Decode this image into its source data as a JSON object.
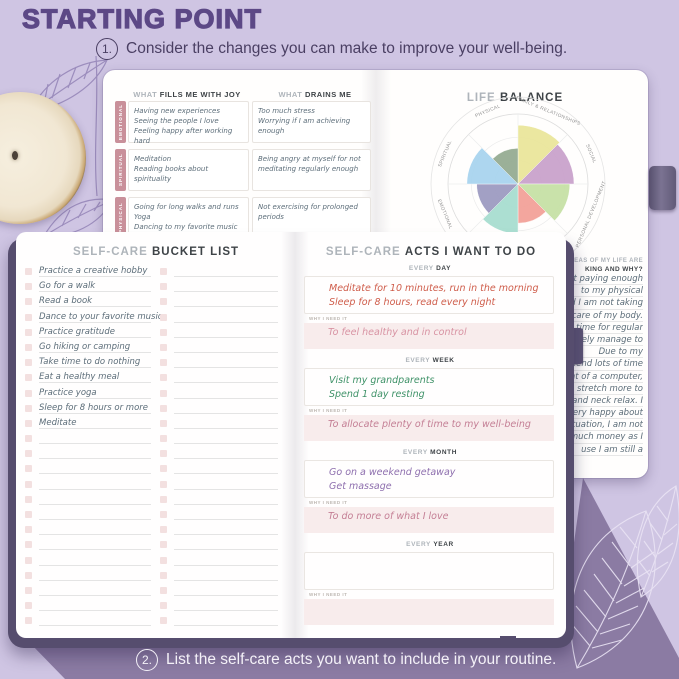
{
  "page": {
    "title": "STARTING POINT",
    "step1": {
      "number": "1.",
      "text": "Consider the changes you can make to improve your well-being."
    },
    "step2": {
      "number": "2.",
      "text": "List the self-care acts you want to include in your routine."
    }
  },
  "joy_page": {
    "joy_header_light": "WHAT",
    "joy_header_bold": "FILLS ME WITH JOY",
    "drains_header_light": "WHAT",
    "drains_header_bold": "DRAINS ME",
    "rows": [
      {
        "category": "EMOTIONAL",
        "joy": "Having new experiences\nSeeing the people I love\nFeeling happy after working hard",
        "drains": "Too much stress\nWorrying if I am achieving enough"
      },
      {
        "category": "SPIRITUAL",
        "joy": "Meditation\nReading books about spirituality",
        "drains": "Being angry at myself for not meditating regularly enough"
      },
      {
        "category": "PHYSICAL",
        "joy": "Going for long walks and runs\nYoga\nDancing to my favorite music",
        "drains": "Not exercising for prolonged periods"
      }
    ]
  },
  "life_balance": {
    "header_light": "LIFE",
    "header_bold": "BALANCE"
  },
  "chart_data": {
    "type": "pie",
    "title": "LIFE BALANCE",
    "categories": [
      "FAMILY & RELATIONSHIPS",
      "SOCIAL",
      "PERSONAL DEVELOPMENT",
      "",
      "",
      "EMOTIONAL",
      "SPIRITUAL",
      "PHYSICAL"
    ],
    "values": [
      8.4,
      8.0,
      7.4,
      5.6,
      7.1,
      5.9,
      7.3,
      5.1
    ],
    "scale_max": 10,
    "colors": [
      "#e9e598",
      "#c89fca",
      "#c4dfa3",
      "#f29e96",
      "#a5dcce",
      "#9a98bf",
      "#a6d2ee",
      "#93a98f"
    ],
    "grid": true,
    "legend_position": "none"
  },
  "reflection": {
    "header_line1": "AREAS OF MY LIFE ARE",
    "header_line2": "KING AND WHY?",
    "lines": [
      "not paying enough",
      "to my physical",
      "and I am not taking",
      "care of my body.",
      "time for regular",
      "rarely manage to",
      "Due to my",
      "spend lots of time",
      "front of a computer,",
      "stretch more to",
      "back and neck relax. I",
      "not very happy about",
      "situation, I am not",
      "much money as I",
      "use I am still a"
    ]
  },
  "bucket_list": {
    "header_light": "SELF-CARE",
    "header_bold": "BUCKET LIST",
    "rows_per_column": 24,
    "items": [
      "Practice a creative hobby",
      "Go for a walk",
      "Read a book",
      "Dance to your favorite music",
      "Practice gratitude",
      "Go hiking or camping",
      "Take time to do nothing",
      "Eat a healthy meal",
      "Practice yoga",
      "Sleep for 8 hours or more",
      "Meditate"
    ]
  },
  "acts": {
    "header_light": "SELF-CARE",
    "header_bold": "ACTS I WANT TO DO",
    "why_label": "WHY I NEED IT",
    "sections": [
      {
        "prefix": "EVERY",
        "word": "DAY",
        "acts": [
          "Meditate for 10 minutes, run in the morning",
          "Sleep for 8 hours, read every night"
        ],
        "acts_color": "#cf5d4b",
        "why": "To feel healthy and in control",
        "why_color": "#d893a3"
      },
      {
        "prefix": "EVERY",
        "word": "WEEK",
        "acts": [
          "Visit my grandparents",
          "Spend 1 day resting"
        ],
        "acts_color": "#3f9268",
        "why": "To allocate plenty of time to my well-being",
        "why_color": "#c47f95"
      },
      {
        "prefix": "EVERY",
        "word": "MONTH",
        "acts": [
          "Go on a weekend getaway",
          "Get massage"
        ],
        "acts_color": "#8e6fae",
        "why": "To do more of what I love",
        "why_color": "#c47f95"
      },
      {
        "prefix": "EVERY",
        "word": "YEAR",
        "acts": [],
        "acts_color": "#5c6d79",
        "why": "",
        "why_color": "#c47f95"
      }
    ]
  },
  "colors": {
    "background": "#cfc5e3",
    "floor_band": "#8b7ba3",
    "title_accent": "#5c4886",
    "notebook_cover": "#564d6e",
    "category_tab": "#c9909a",
    "checkbox": "#f3e0e0",
    "why_background": "#f8ecec",
    "handwriting": "#5c6d79"
  }
}
